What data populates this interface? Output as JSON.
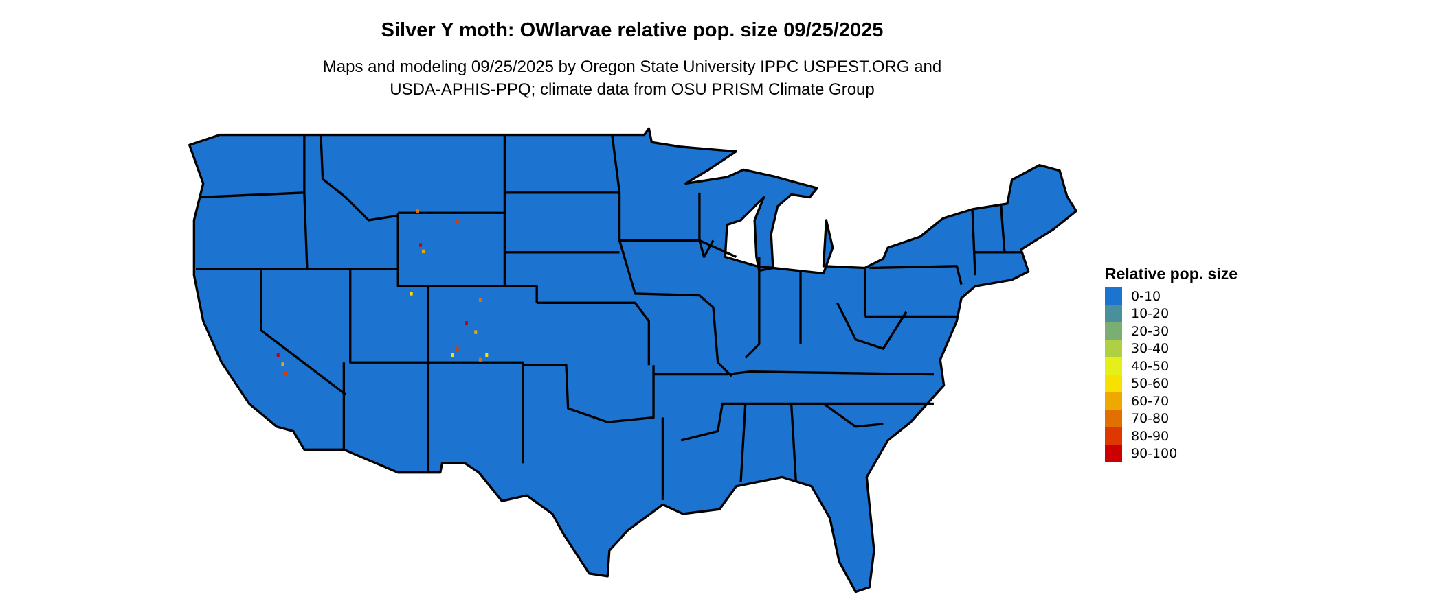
{
  "title": "Silver Y moth: OWlarvae relative pop. size 09/25/2025",
  "subtitle": [
    "Maps and modeling 09/25/2025 by Oregon State University IPPC USPEST.ORG and",
    "USDA-APHIS-PPQ; climate data from OSU PRISM Climate Group"
  ],
  "map": {
    "region": "Contiguous United States",
    "base_color": "#1c74d0",
    "border_color": "#000000"
  },
  "legend": {
    "title": "Relative pop. size",
    "items": [
      {
        "label": "0-10",
        "color": "#1c74d0"
      },
      {
        "label": "10-20",
        "color": "#4a8f9c"
      },
      {
        "label": "20-30",
        "color": "#7aae72"
      },
      {
        "label": "30-40",
        "color": "#b0d044"
      },
      {
        "label": "40-50",
        "color": "#e4f018"
      },
      {
        "label": "50-60",
        "color": "#f8e000"
      },
      {
        "label": "60-70",
        "color": "#eea800"
      },
      {
        "label": "70-80",
        "color": "#e27000"
      },
      {
        "label": "80-90",
        "color": "#dc3800"
      },
      {
        "label": "90-100",
        "color": "#cc0000"
      }
    ]
  }
}
